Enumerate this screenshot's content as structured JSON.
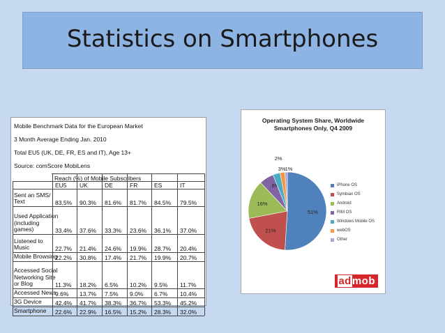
{
  "slide": {
    "title": "Statistics on Smartphones"
  },
  "benchmark_table": {
    "meta_lines": [
      "Mobile Benchmark Data for the European Market",
      "3  Month Average Ending Jan. 2010",
      "Total EU5 (UK, DE, FR, ES and IT), Age 13+",
      "Source: comScore MobiLens"
    ],
    "reach_header": "Reach (%) of Mobile Subscribers",
    "columns": [
      "EU5",
      "UK",
      "DE",
      "FR",
      "ES",
      "IT"
    ],
    "rows": [
      {
        "label": "Sent an SMS/\nText",
        "values": [
          "83.5%",
          "90.3%",
          "81.6%",
          "81.7%",
          "84.5%",
          "79.5%"
        ]
      },
      {
        "label": "Used Application\n(including\ngames)",
        "values": [
          "33.4%",
          "37.6%",
          "33.3%",
          "23.6%",
          "36.1%",
          "37.0%"
        ]
      },
      {
        "label": "Listened to\nMusic",
        "values": [
          "22.7%",
          "21.4%",
          "24.6%",
          "19.9%",
          "28.7%",
          "20.4%"
        ]
      },
      {
        "label": "Mobile Browsing",
        "values": [
          "22.2%",
          "30.8%",
          "17.4%",
          "21.7%",
          "19.9%",
          "20.7%"
        ]
      },
      {
        "label": "Accessed Social\nNetworking Site\nor Blog",
        "values": [
          "11.3%",
          "18.2%",
          "6.5%",
          "10.2%",
          "9.5%",
          "11.7%"
        ]
      },
      {
        "label": "Accessed News",
        "values": [
          "9.6%",
          "13.7%",
          "7.5%",
          "9.0%",
          "6.7%",
          "10.4%"
        ]
      },
      {
        "label": "3G Device",
        "values": [
          "42.4%",
          "41.7%",
          "38.3%",
          "36.7%",
          "53.3%",
          "45.2%"
        ]
      },
      {
        "label": "Smartphone",
        "values": [
          "22.6%",
          "22.9%",
          "16.5%",
          "15.2%",
          "28.3%",
          "32.0%"
        ]
      }
    ]
  },
  "chart_data": {
    "type": "pie",
    "title": "Operating System Share, Worldwide",
    "subtitle": "Smartphones Only, Q4 2009",
    "slices": [
      {
        "name": "iPhone OS",
        "value": 51,
        "label": "51%",
        "color": "#4f81bd"
      },
      {
        "name": "Symbian OS",
        "value": 21,
        "label": "21%",
        "color": "#c0504d"
      },
      {
        "name": "Android",
        "value": 16,
        "label": "16%",
        "color": "#9bbb59"
      },
      {
        "name": "RIM OS",
        "value": 6,
        "label": "6%",
        "color": "#8064a2"
      },
      {
        "name": "Windows Mobile OS",
        "value": 3,
        "label": "3%",
        "color": "#4bacc6"
      },
      {
        "name": "webOS",
        "value": 2,
        "label": "2%",
        "color": "#f79646"
      },
      {
        "name": "Other",
        "value": 1,
        "label": "1%",
        "color": "#a5a5d0"
      }
    ],
    "legend_placement": "right"
  },
  "branding": {
    "logo_text": "admob"
  }
}
